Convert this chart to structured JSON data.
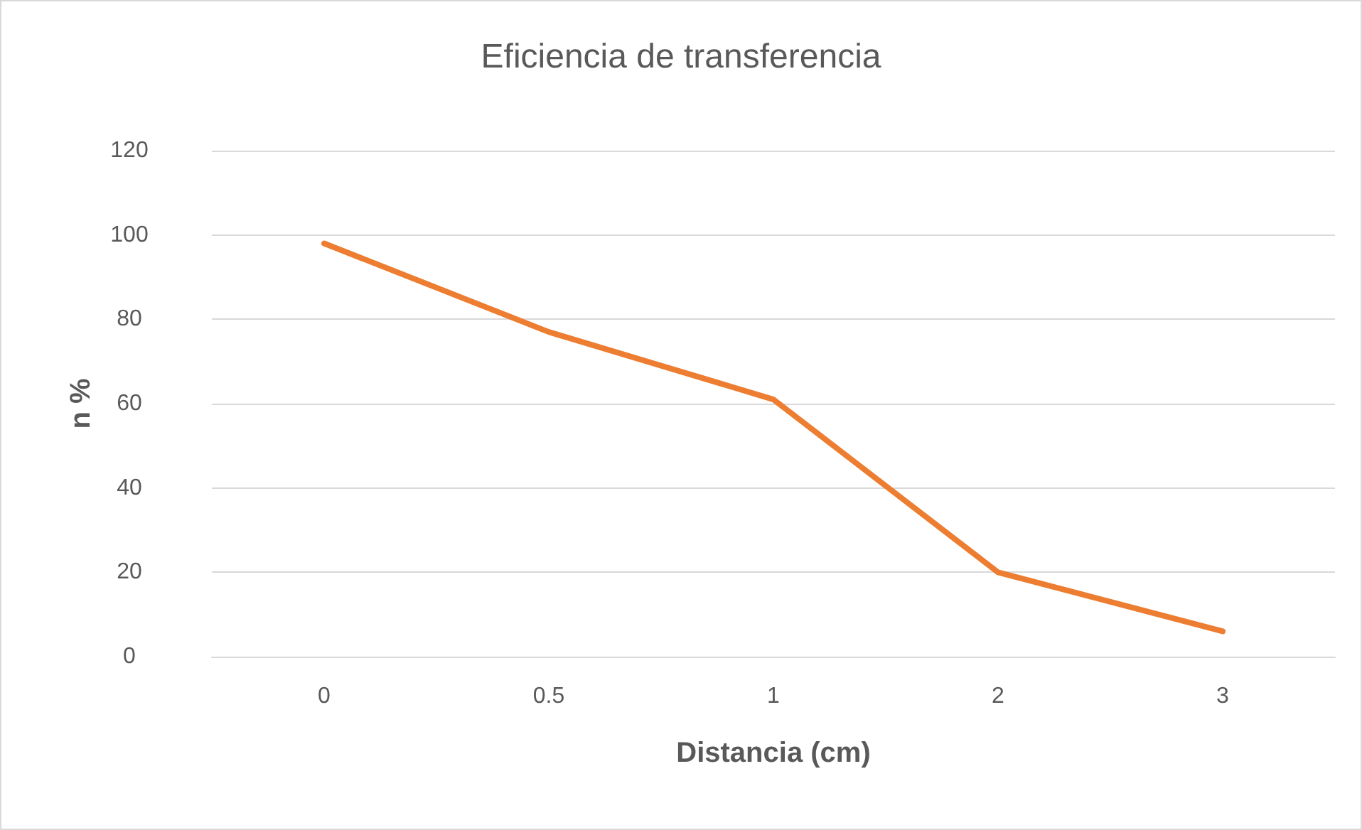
{
  "chart_data": {
    "type": "line",
    "title": "Eficiencia de transferencia",
    "xlabel": "Distancia (cm)",
    "ylabel": "n %",
    "categories": [
      "0",
      "0.5",
      "1",
      "2",
      "3"
    ],
    "series": [
      {
        "color": "#ed7d31",
        "values": [
          98,
          77,
          61,
          20,
          6
        ]
      }
    ],
    "ylim": [
      0,
      120
    ],
    "yticks": [
      0,
      20,
      40,
      60,
      80,
      100,
      120
    ],
    "grid": "y",
    "marker": "none",
    "line_style": "solid"
  }
}
